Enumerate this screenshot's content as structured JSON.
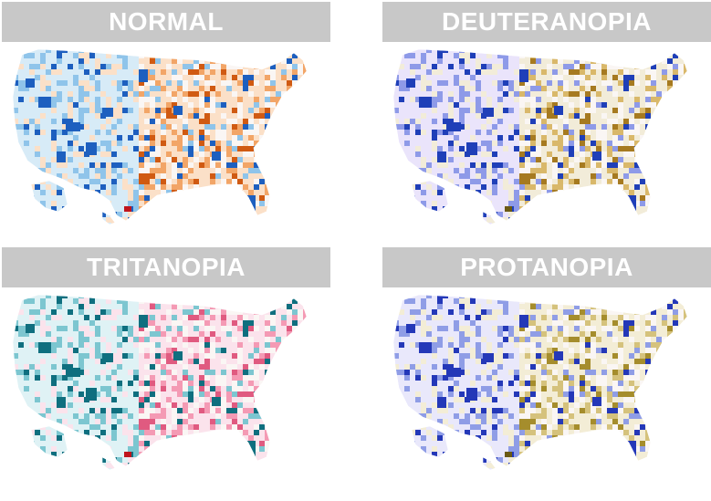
{
  "panels": [
    {
      "id": "normal",
      "title": "NORMAL",
      "palette": {
        "high": "#1d5fbf",
        "mid": "#8fc4ea",
        "low": "#d7ebf7",
        "warmLow": "#fbe0c8",
        "warmMid": "#f2a567",
        "warmHigh": "#d05a12",
        "accent": "#c0141c"
      }
    },
    {
      "id": "deuteranopia",
      "title": "DEUTERANOPIA",
      "palette": {
        "high": "#1f3fb8",
        "mid": "#8e9ae8",
        "low": "#eae4fb",
        "warmLow": "#f2ecd9",
        "warmMid": "#d9b86a",
        "warmHigh": "#a67a20",
        "accent": "#6b5a14"
      }
    },
    {
      "id": "tritanopia",
      "title": "TRITANOPIA",
      "palette": {
        "high": "#0f6f7f",
        "mid": "#7cc6d0",
        "low": "#dff2f5",
        "warmLow": "#fbe3ec",
        "warmMid": "#f49ab4",
        "warmHigh": "#e05a80",
        "accent": "#c0141c"
      }
    },
    {
      "id": "protanopia",
      "title": "PROTANOPIA",
      "palette": {
        "high": "#2438b8",
        "mid": "#8f9de6",
        "low": "#e9e8fb",
        "warmLow": "#f3edd6",
        "warmMid": "#d5c27c",
        "warmHigh": "#a58d2c",
        "accent": "#6b5a14"
      }
    }
  ]
}
